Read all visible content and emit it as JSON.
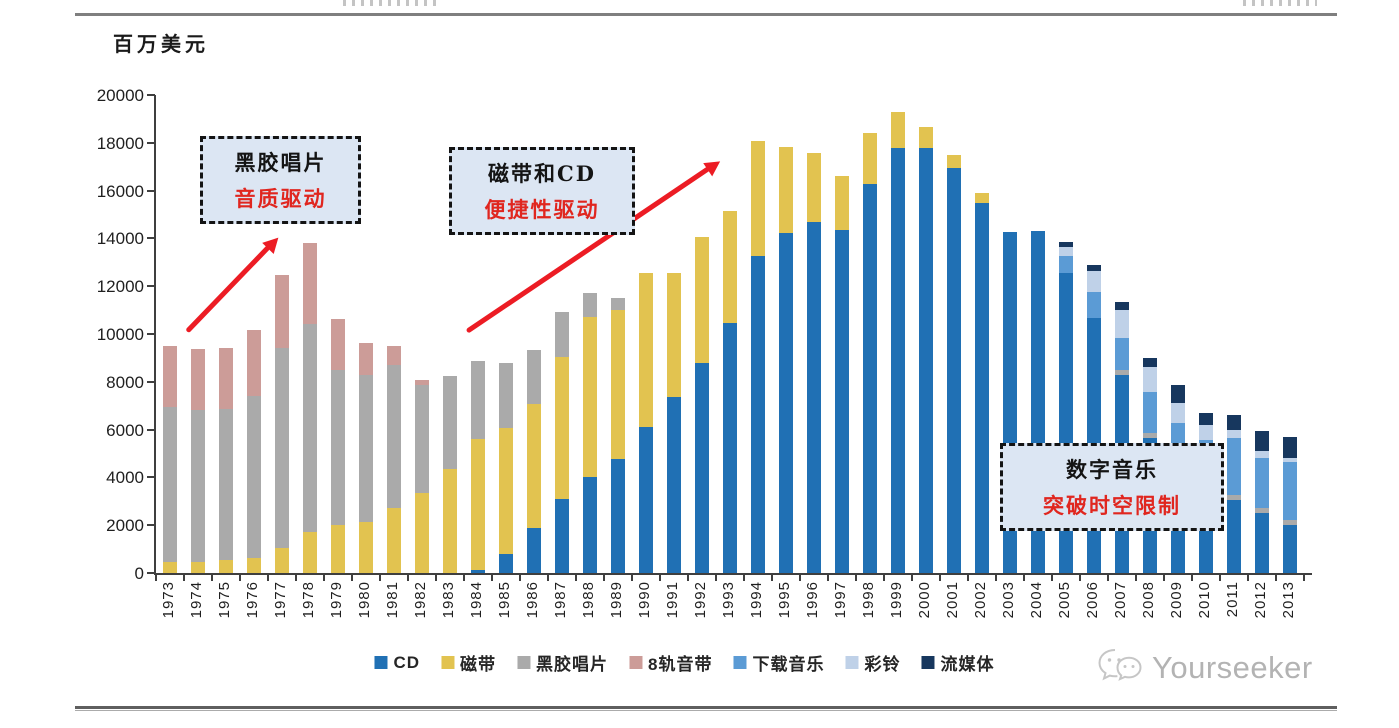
{
  "page": {
    "unit_label": "百万美元",
    "watermark_text": "Yourseeker"
  },
  "chart_data": {
    "type": "bar",
    "stacked": true,
    "title": "",
    "ylabel": "百万美元",
    "xlabel": "",
    "grid": false,
    "legend_position": "bottom",
    "y_axis": {
      "min": 0,
      "max": 20000,
      "tick_step": 2000,
      "ticks": [
        0,
        2000,
        4000,
        6000,
        8000,
        10000,
        12000,
        14000,
        16000,
        18000,
        20000
      ]
    },
    "categories": [
      "1973",
      "1974",
      "1975",
      "1976",
      "1977",
      "1978",
      "1979",
      "1980",
      "1981",
      "1982",
      "1983",
      "1984",
      "1985",
      "1986",
      "1987",
      "1988",
      "1989",
      "1990",
      "1991",
      "1992",
      "1993",
      "1994",
      "1995",
      "1996",
      "1997",
      "1998",
      "1999",
      "2000",
      "2001",
      "2002",
      "2003",
      "2004",
      "2005",
      "2006",
      "2007",
      "2008",
      "2009",
      "2010",
      "2011",
      "2012",
      "2013"
    ],
    "series": [
      {
        "name": "CD",
        "color": "#2070b4",
        "values": [
          0,
          0,
          0,
          0,
          0,
          0,
          0,
          0,
          0,
          0,
          0,
          130,
          800,
          1880,
          3100,
          4020,
          4770,
          6110,
          7360,
          8790,
          10450,
          13270,
          14230,
          14690,
          14350,
          16280,
          17800,
          17780,
          16940,
          15480,
          14250,
          14300,
          12550,
          10670,
          8280,
          5650,
          4100,
          3290,
          3050,
          2510,
          2010
        ]
      },
      {
        "name": "磁带",
        "color": "#e2c350",
        "values": [
          450,
          460,
          540,
          630,
          1040,
          1720,
          2010,
          2130,
          2720,
          3350,
          4350,
          5480,
          5280,
          5190,
          5940,
          6690,
          6230,
          6440,
          5190,
          5270,
          4690,
          4810,
          3600,
          2890,
          2260,
          2130,
          1500,
          880,
          550,
          420,
          0,
          0,
          0,
          0,
          0,
          0,
          0,
          0,
          0,
          0,
          0
        ]
      },
      {
        "name": "黑胶唱片",
        "color": "#aaaaaa",
        "values": [
          6500,
          6360,
          6320,
          6770,
          8360,
          8680,
          6480,
          6150,
          5980,
          4510,
          3890,
          3270,
          2720,
          2260,
          1880,
          1000,
          500,
          0,
          0,
          0,
          0,
          0,
          0,
          0,
          0,
          0,
          0,
          0,
          0,
          0,
          0,
          0,
          0,
          0,
          210,
          210,
          210,
          170,
          210,
          210,
          210
        ]
      },
      {
        "name": "8轨音带",
        "color": "#cc9c98",
        "values": [
          2550,
          2550,
          2540,
          2760,
          3070,
          3400,
          2130,
          1340,
          800,
          210,
          0,
          0,
          0,
          0,
          0,
          0,
          0,
          0,
          0,
          0,
          0,
          0,
          0,
          0,
          0,
          0,
          0,
          0,
          0,
          0,
          0,
          0,
          0,
          0,
          0,
          0,
          0,
          0,
          0,
          0,
          0
        ]
      },
      {
        "name": "下载音乐",
        "color": "#5b9bd5",
        "values": [
          0,
          0,
          0,
          0,
          0,
          0,
          0,
          0,
          0,
          0,
          0,
          0,
          0,
          0,
          0,
          0,
          0,
          0,
          0,
          0,
          0,
          0,
          0,
          0,
          0,
          0,
          0,
          0,
          0,
          0,
          0,
          0,
          700,
          1090,
          1340,
          1715,
          1965,
          2090,
          2385,
          2090,
          2430
        ]
      },
      {
        "name": "彩铃",
        "color": "#bfd1e8",
        "values": [
          0,
          0,
          0,
          0,
          0,
          0,
          0,
          0,
          0,
          0,
          0,
          0,
          0,
          0,
          0,
          0,
          0,
          0,
          0,
          0,
          0,
          0,
          0,
          0,
          0,
          0,
          0,
          0,
          0,
          0,
          0,
          0,
          380,
          880,
          1170,
          1050,
          840,
          630,
          340,
          300,
          170
        ]
      },
      {
        "name": "流媒体",
        "color": "#17375e",
        "values": [
          0,
          0,
          0,
          0,
          0,
          0,
          0,
          0,
          0,
          0,
          0,
          0,
          0,
          0,
          0,
          0,
          0,
          0,
          0,
          0,
          0,
          0,
          0,
          0,
          0,
          0,
          0,
          0,
          0,
          0,
          0,
          0,
          220,
          260,
          340,
          375,
          750,
          500,
          630,
          835,
          880
        ]
      }
    ],
    "annotations": [
      {
        "line1": "黑胶唱片",
        "line2": "音质驱动"
      },
      {
        "line1": "磁带和CD",
        "line2": "便捷性驱动"
      },
      {
        "line1": "数字音乐",
        "line2": "突破时空限制"
      }
    ]
  }
}
